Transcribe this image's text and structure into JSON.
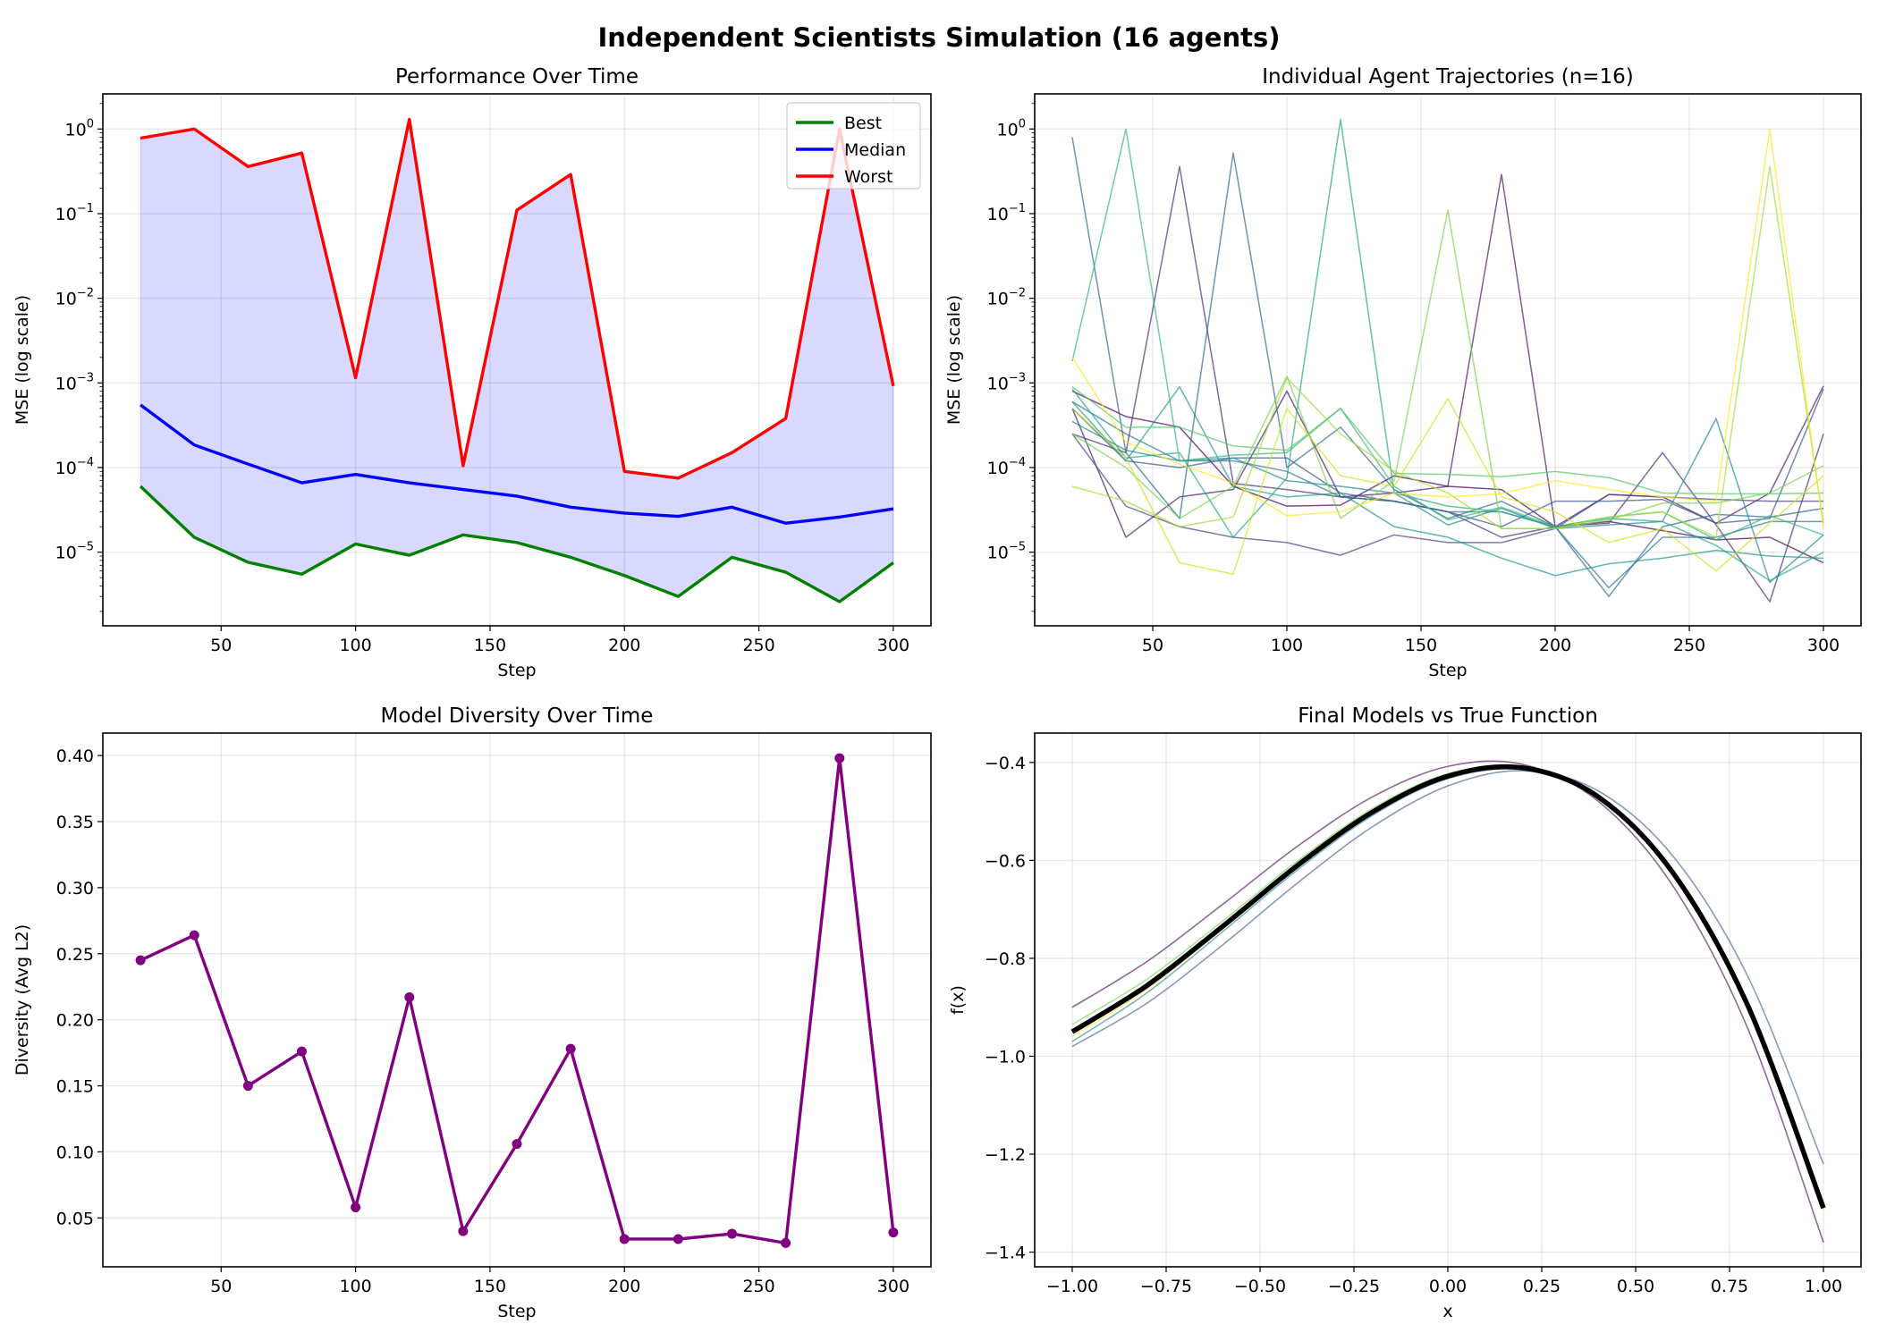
{
  "title": "Independent Scientists Simulation (16 agents)",
  "chart_data": [
    {
      "type": "line",
      "title": "Performance Over Time",
      "xlabel": "Step",
      "ylabel": "MSE (log scale)",
      "yscale": "log",
      "grid": true,
      "legend_placement": "top-right",
      "x": [
        20,
        40,
        60,
        80,
        100,
        120,
        140,
        160,
        180,
        200,
        220,
        240,
        260,
        280,
        300
      ],
      "xlim": [
        6,
        314
      ],
      "ylim": [
        1.35e-06,
        2.6
      ],
      "xticks": [
        50,
        100,
        150,
        200,
        250,
        300
      ],
      "yticks_exp": [
        -5,
        -4,
        -3,
        -2,
        -1,
        0
      ],
      "fill_between": {
        "lower": "Best",
        "upper": "Worst",
        "color": "#0000ff",
        "alpha": 0.15
      },
      "series": [
        {
          "name": "Best",
          "color": "#008000",
          "values": [
            6e-05,
            1.5e-05,
            7.6e-06,
            5.5e-06,
            1.25e-05,
            9.2e-06,
            1.6e-05,
            1.3e-05,
            8.7e-06,
            5.3e-06,
            3e-06,
            8.7e-06,
            5.8e-06,
            2.6e-06,
            7.5e-06
          ]
        },
        {
          "name": "Median",
          "color": "#0000ff",
          "values": [
            0.00055,
            0.000185,
            0.00011,
            6.6e-05,
            8.3e-05,
            6.6e-05,
            5.5e-05,
            4.6e-05,
            3.4e-05,
            2.9e-05,
            2.65e-05,
            3.4e-05,
            2.2e-05,
            2.6e-05,
            3.25e-05
          ]
        },
        {
          "name": "Worst",
          "color": "#ff0000",
          "values": [
            0.78,
            1.0,
            0.36,
            0.52,
            0.00115,
            1.3,
            0.000105,
            0.11,
            0.29,
            9e-05,
            7.5e-05,
            0.00015,
            0.00038,
            1.0,
            0.00092
          ]
        }
      ]
    },
    {
      "type": "line",
      "title": "Individual Agent Trajectories (n=16)",
      "xlabel": "Step",
      "ylabel": "MSE (log scale)",
      "yscale": "log",
      "grid": true,
      "x": [
        20,
        40,
        60,
        80,
        100,
        120,
        140,
        160,
        180,
        200,
        220,
        240,
        260,
        280,
        300
      ],
      "xlim": [
        6,
        314
      ],
      "ylim": [
        1.35e-06,
        2.6
      ],
      "xticks": [
        50,
        100,
        150,
        200,
        250,
        300
      ],
      "yticks_exp": [
        -5,
        -4,
        -3,
        -2,
        -1,
        0
      ],
      "colormap": "viridis",
      "series": [
        {
          "color": "#440154",
          "values": [
            0.0008,
            0.0004,
            0.0003,
            6e-05,
            3.5e-05,
            3.6e-05,
            8e-05,
            6e-05,
            5.5e-05,
            2e-05,
            2.3e-05,
            1.8e-05,
            1.4e-05,
            1.5e-05,
            7.5e-06
          ]
        },
        {
          "color": "#481a6c",
          "values": [
            0.0005,
            1.5e-05,
            4.5e-05,
            5.5e-05,
            0.0008,
            4.5e-05,
            5e-05,
            6e-05,
            0.29,
            2e-05,
            4.8e-05,
            4.5e-05,
            2.2e-05,
            5e-05,
            0.00092
          ]
        },
        {
          "color": "#472f7d",
          "values": [
            0.00025,
            0.00015,
            0.36,
            6.5e-05,
            5.5e-05,
            4.5e-05,
            4e-05,
            3e-05,
            1.5e-05,
            2e-05,
            2.2e-05,
            0.00015,
            2.1e-05,
            2.6e-06,
            0.00025
          ]
        },
        {
          "color": "#414487",
          "values": [
            0.00025,
            3.5e-05,
            2e-05,
            1.5e-05,
            1.3e-05,
            9.2e-06,
            1.6e-05,
            1.3e-05,
            1.3e-05,
            1.9e-05,
            4.8e-05,
            4.5e-05,
            4.2e-05,
            4e-05,
            4e-05
          ]
        },
        {
          "color": "#39568c",
          "values": [
            0.0005,
            0.00012,
            0.0001,
            0.00013,
            0.00013,
            5e-05,
            4e-05,
            3e-05,
            2e-05,
            4e-05,
            4e-05,
            4.2e-05,
            2.2e-05,
            2.5e-05,
            0.00085
          ]
        },
        {
          "color": "#31688e",
          "values": [
            0.8,
            0.00015,
            2.5e-05,
            0.52,
            0.0001,
            0.0003,
            5.5e-05,
            2.5e-05,
            4e-05,
            2e-05,
            3e-06,
            2e-05,
            2.8e-05,
            2.6e-05,
            3.3e-05
          ]
        },
        {
          "color": "#2a788e",
          "values": [
            0.0006,
            0.00025,
            0.00012,
            0.00012,
            9e-05,
            4.5e-05,
            4e-05,
            3e-05,
            3e-05,
            2e-05,
            3.8e-06,
            1.5e-05,
            1.5e-05,
            2.3e-05,
            2.3e-05
          ]
        },
        {
          "color": "#23888e",
          "values": [
            0.00035,
            0.00016,
            0.00012,
            0.00013,
            7e-05,
            6e-05,
            5e-05,
            2.1e-05,
            3.3e-05,
            1.9e-05,
            2.1e-05,
            2.3e-05,
            0.00038,
            4.4e-06,
            1.6e-05
          ]
        },
        {
          "color": "#1f988b",
          "values": [
            0.0006,
            0.00012,
            0.0009,
            6e-05,
            4.5e-05,
            5e-05,
            2e-05,
            1.5e-05,
            8.5e-06,
            5.3e-06,
            7.3e-06,
            8.5e-06,
            1.05e-05,
            9e-06,
            8.5e-06
          ]
        },
        {
          "color": "#22a884",
          "values": [
            0.00085,
            0.00013,
            0.00015,
            1.5e-05,
            7.5e-05,
            1.3,
            5e-05,
            3.5e-05,
            3e-05,
            2e-05,
            2.5e-05,
            2.3e-05,
            1.2e-05,
            4.6e-06,
            1e-05
          ]
        },
        {
          "color": "#35b779",
          "values": [
            0.0018,
            1.0,
            0.00012,
            0.00014,
            0.00015,
            0.0005,
            6e-05,
            2.4e-05,
            3.4e-05,
            2e-05,
            2.6e-05,
            3e-05,
            1.4e-05,
            2.7e-05,
            1.6e-05
          ]
        },
        {
          "color": "#54c568",
          "values": [
            0.0009,
            0.0003,
            0.0003,
            0.00018,
            0.00016,
            0.0005,
            8.5e-05,
            8.3e-05,
            7.8e-05,
            9e-05,
            7.6e-05,
            5e-05,
            4.9e-05,
            4.9e-05,
            5e-05
          ]
        },
        {
          "color": "#7ad151",
          "values": [
            0.00025,
            0.0001,
            2.5e-05,
            6e-05,
            0.0012,
            2.5e-05,
            7e-05,
            0.11,
            1.9e-05,
            1.9e-05,
            2.4e-05,
            3.8e-05,
            3.8e-05,
            5e-05,
            0.000105
          ]
        },
        {
          "color": "#a5db36",
          "values": [
            6e-05,
            4e-05,
            2e-05,
            2.6e-05,
            0.00115,
            0.00025,
            9e-05,
            5e-05,
            1.9e-05,
            1.9e-05,
            2.6e-05,
            3e-05,
            1.5e-05,
            0.36,
            2.2e-05
          ]
        },
        {
          "color": "#d2e21b",
          "values": [
            0.0005,
            0.00013,
            7.5e-06,
            5.5e-06,
            0.0005,
            8e-05,
            6e-05,
            0.00065,
            4.5e-05,
            3e-05,
            1.3e-05,
            1.9e-05,
            6e-06,
            2.2e-05,
            8e-05
          ]
        },
        {
          "color": "#fde725",
          "values": [
            0.002,
            0.0002,
            0.00011,
            6.5e-05,
            2.7e-05,
            3e-05,
            5e-05,
            4.5e-05,
            4.9e-05,
            7e-05,
            5.5e-05,
            4.5e-05,
            4e-05,
            1.0,
            1.9e-05
          ]
        }
      ]
    },
    {
      "type": "line",
      "title": "Model Diversity Over Time",
      "xlabel": "Step",
      "ylabel": "Diversity (Avg L2)",
      "grid": true,
      "markers": true,
      "x": [
        20,
        40,
        60,
        80,
        100,
        120,
        140,
        160,
        180,
        200,
        220,
        240,
        260,
        280,
        300
      ],
      "xlim": [
        6,
        314
      ],
      "ylim": [
        0.013,
        0.417
      ],
      "xticks": [
        50,
        100,
        150,
        200,
        250,
        300
      ],
      "yticks": [
        0.05,
        0.1,
        0.15,
        0.2,
        0.25,
        0.3,
        0.35,
        0.4
      ],
      "ytick_labels": [
        "0.05",
        "0.10",
        "0.15",
        "0.20",
        "0.25",
        "0.30",
        "0.35",
        "0.40"
      ],
      "series": [
        {
          "color": "#800080",
          "values": [
            0.245,
            0.264,
            0.15,
            0.176,
            0.058,
            0.217,
            0.04,
            0.106,
            0.178,
            0.034,
            0.034,
            0.038,
            0.031,
            0.398,
            0.039
          ]
        }
      ]
    },
    {
      "type": "line",
      "title": "Final Models vs True Function",
      "xlabel": "x",
      "ylabel": "f(x)",
      "grid": true,
      "x": [
        -1.0,
        -0.8,
        -0.6,
        -0.4,
        -0.2,
        0.0,
        0.2,
        0.4,
        0.6,
        0.8,
        1.0
      ],
      "xlim": [
        -1.1,
        1.1
      ],
      "ylim": [
        -1.43,
        -0.34
      ],
      "xticks": [
        -1.0,
        -0.75,
        -0.5,
        -0.25,
        0.0,
        0.25,
        0.5,
        0.75,
        1.0
      ],
      "xtick_labels": [
        "−1.00",
        "−0.75",
        "−0.50",
        "−0.25",
        "0.00",
        "0.25",
        "0.50",
        "0.75",
        "1.00"
      ],
      "yticks": [
        -1.4,
        -1.2,
        -1.0,
        -0.8,
        -0.6,
        -0.4
      ],
      "ytick_labels": [
        "−1.4",
        "−1.2",
        "−1.0",
        "−0.8",
        "−0.6",
        "−0.4"
      ],
      "series": [
        {
          "color": "#440154",
          "values": [
            -0.9,
            -0.806,
            -0.69,
            -0.571,
            -0.47,
            -0.408,
            -0.404,
            -0.479,
            -0.653,
            -0.946,
            -1.38
          ]
        },
        {
          "color": "#39568c",
          "values": [
            -0.98,
            -0.891,
            -0.773,
            -0.646,
            -0.531,
            -0.448,
            -0.417,
            -0.458,
            -0.592,
            -0.839,
            -1.22
          ]
        },
        {
          "color": "#23888e",
          "values": [
            -0.97,
            -0.87,
            -0.746,
            -0.619,
            -0.508,
            -0.433,
            -0.415,
            -0.473,
            -0.628,
            -0.9,
            -1.305
          ]
        },
        {
          "color": "#7ad151",
          "values": [
            -0.935,
            -0.842,
            -0.724,
            -0.601,
            -0.494,
            -0.423,
            -0.409,
            -0.469,
            -0.626,
            -0.9,
            -1.312
          ]
        },
        {
          "color": "#fde725",
          "values": [
            -0.96,
            -0.862,
            -0.74,
            -0.613,
            -0.502,
            -0.427,
            -0.408,
            -0.466,
            -0.622,
            -0.896,
            -1.315
          ]
        },
        {
          "color": "#000000",
          "true_function": true,
          "values": [
            -0.95,
            -0.855,
            -0.735,
            -0.61,
            -0.501,
            -0.428,
            -0.411,
            -0.47,
            -0.626,
            -0.899,
            -1.31
          ]
        }
      ]
    }
  ]
}
